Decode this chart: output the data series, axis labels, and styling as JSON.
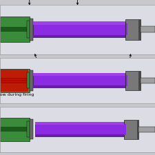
{
  "bg_color": "#c8c8cc",
  "panel_bg": "#dcdce4",
  "purple": "#8b2be2",
  "purple_dark": "#6a1ab0",
  "green": "#3a8c3a",
  "green_dark": "#1a5a1a",
  "gray": "#787878",
  "gray_dark": "#484848",
  "gray_light": "#a0a0a0",
  "red_fill": "#cc1100",
  "red_stripe": "#882200",
  "white": "#ffffff",
  "figsize": [
    2.25,
    2.25
  ],
  "dpi": 100
}
